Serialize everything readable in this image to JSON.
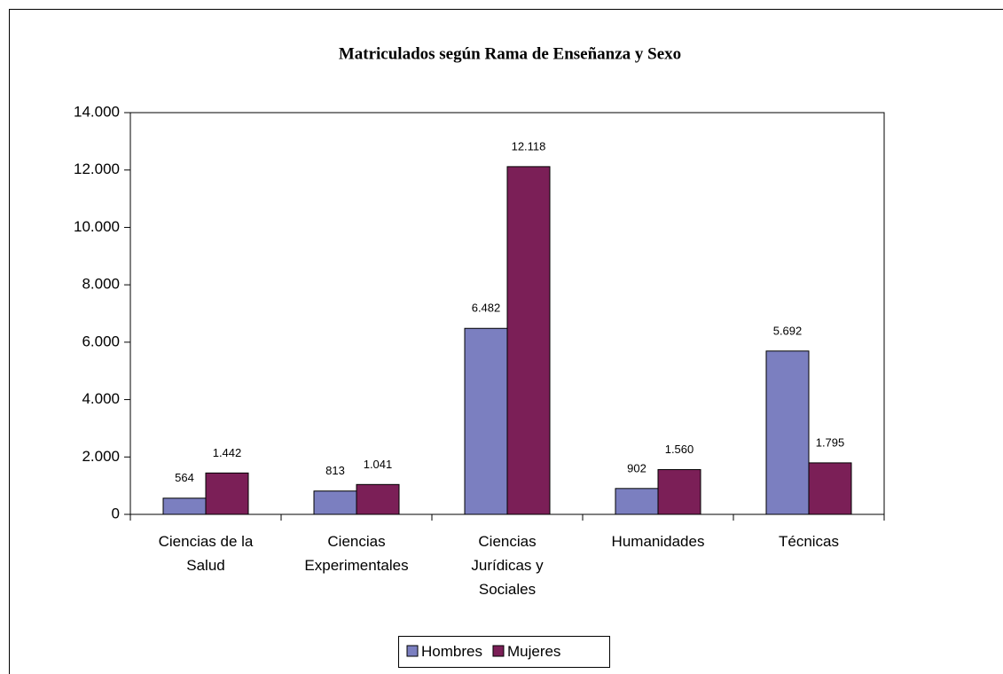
{
  "chart_data": {
    "type": "bar",
    "title": "Matriculados según Rama de Enseñanza y Sexo",
    "categories": [
      "Ciencias de la\nSalud",
      "Ciencias\nExperimentales",
      "Ciencias\nJurídicas y\nSociales",
      "Humanidades",
      "Técnicas"
    ],
    "series": [
      {
        "name": "Hombres",
        "color": "#7b7fc0",
        "values": [
          564,
          813,
          6482,
          902,
          5692
        ],
        "value_labels": [
          "564",
          "813",
          "6.482",
          "902",
          "5.692"
        ]
      },
      {
        "name": "Mujeres",
        "color": "#7b1f57",
        "values": [
          1442,
          1041,
          12118,
          1560,
          1795
        ],
        "value_labels": [
          "1.442",
          "1.041",
          "12.118",
          "1.560",
          "1.795"
        ]
      }
    ],
    "ylim": [
      0,
      14000
    ],
    "yticks": [
      0,
      {
        "value": 2000,
        "label": "2.000"
      },
      {
        "value": 4000,
        "label": "4.000"
      },
      {
        "value": 6000,
        "label": "6.000"
      },
      {
        "value": 8000,
        "label": "8.000"
      },
      {
        "value": 10000,
        "label": "10.000"
      },
      {
        "value": 12000,
        "label": "12.000"
      },
      {
        "value": 14000,
        "label": "14.000"
      }
    ],
    "grid": false,
    "legend": "bottom"
  }
}
